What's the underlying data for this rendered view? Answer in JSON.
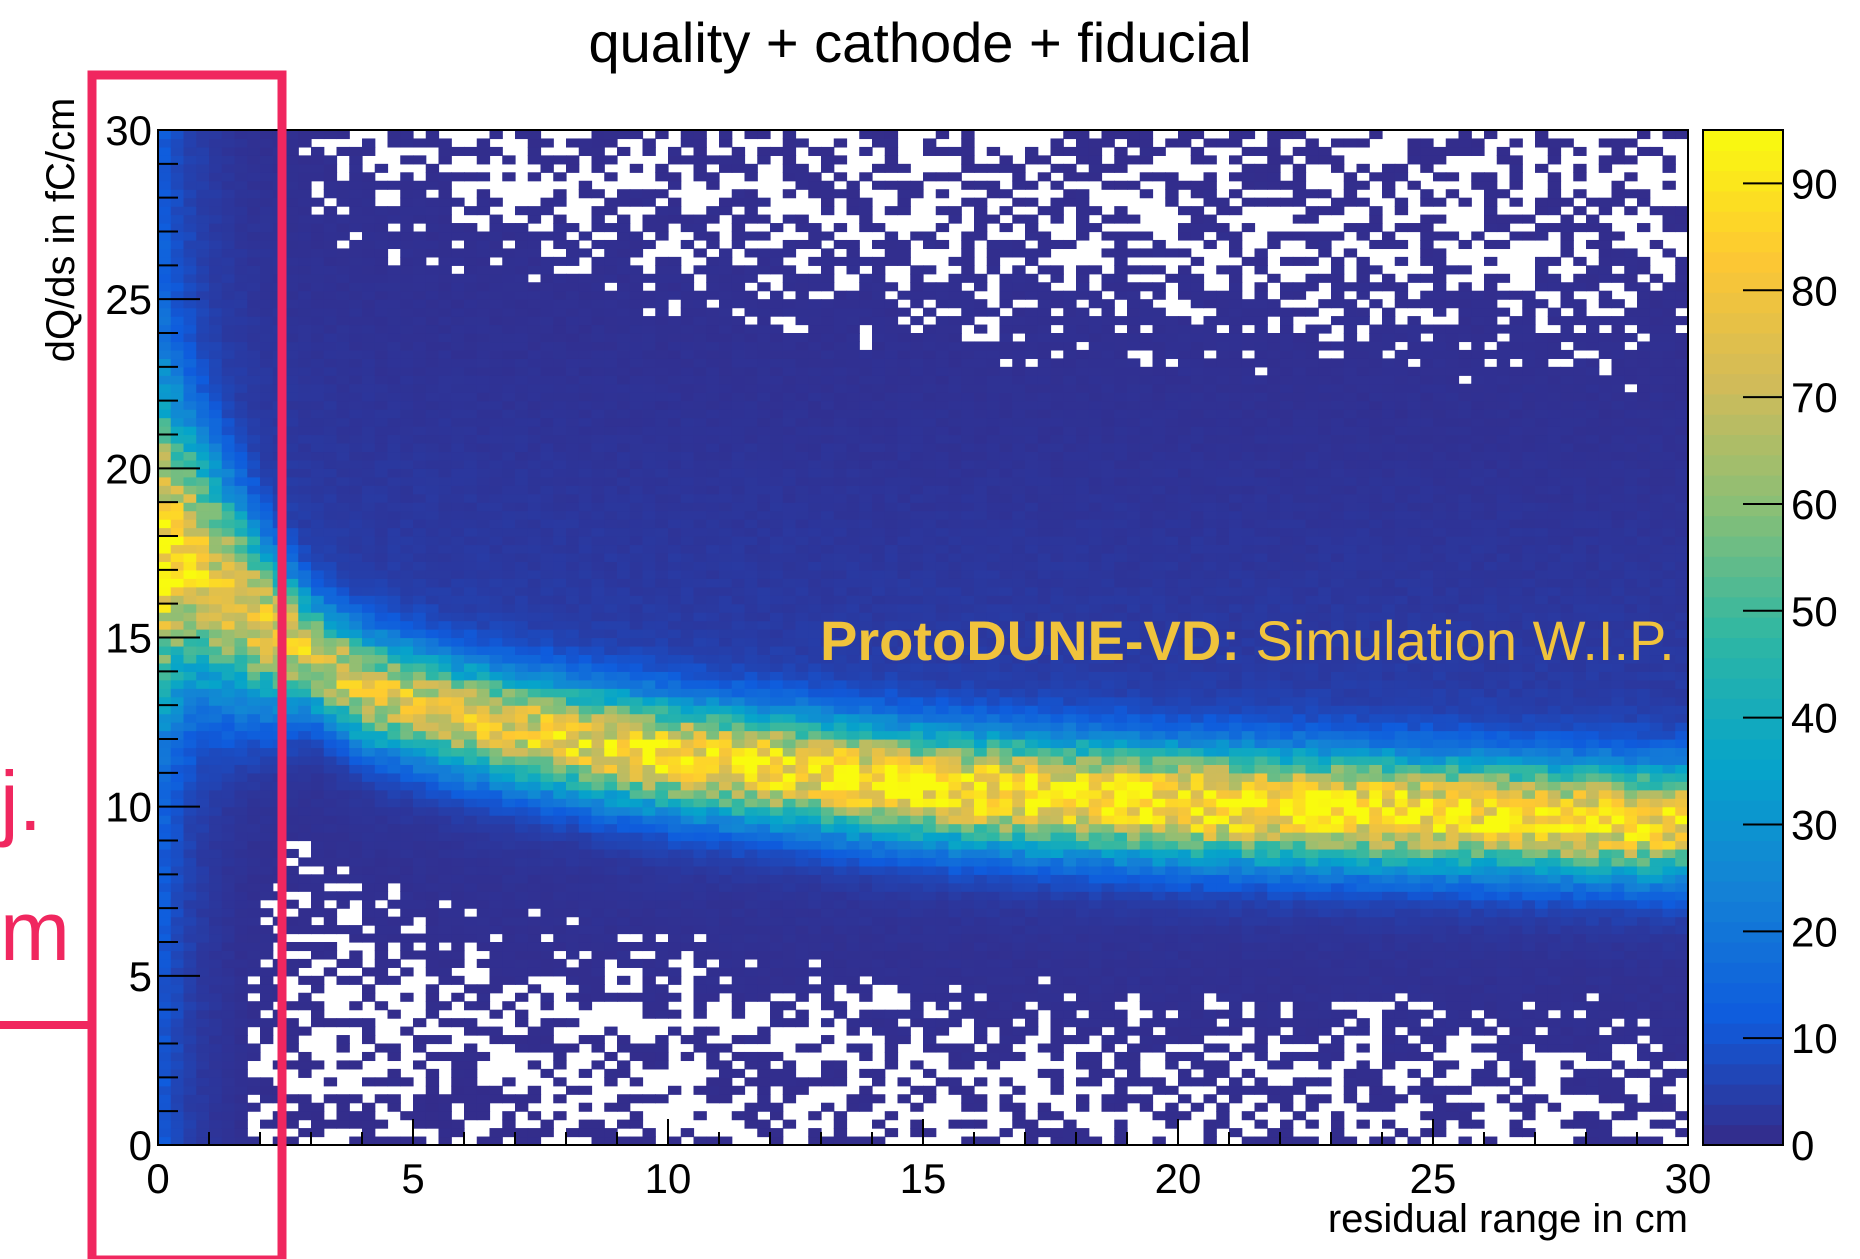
{
  "chart_data": {
    "type": "heatmap",
    "title": "quality + cathode + fiducial",
    "xlabel": "residual range in cm",
    "ylabel": "dQ/ds in fC/cm",
    "xlim": [
      0,
      30
    ],
    "ylim": [
      0,
      30
    ],
    "zlim": [
      0,
      95
    ],
    "x_ticks": [
      "0",
      "5",
      "10",
      "15",
      "20",
      "25",
      "30"
    ],
    "y_ticks": [
      "0",
      "5",
      "10",
      "15",
      "20",
      "25",
      "30"
    ],
    "z_ticks": [
      "0",
      "10",
      "20",
      "30",
      "40",
      "50",
      "60",
      "70",
      "80",
      "90"
    ],
    "bins": {
      "nx": 120,
      "ny": 120
    },
    "band_peak_y": [
      {
        "x": 0.5,
        "y": 17.5
      },
      {
        "x": 2,
        "y": 15.5
      },
      {
        "x": 4,
        "y": 13.5
      },
      {
        "x": 6,
        "y": 12.6
      },
      {
        "x": 8,
        "y": 12.0
      },
      {
        "x": 10,
        "y": 11.5
      },
      {
        "x": 15,
        "y": 10.6
      },
      {
        "x": 20,
        "y": 10.1
      },
      {
        "x": 25,
        "y": 9.8
      },
      {
        "x": 30,
        "y": 9.5
      }
    ],
    "band_peak_count": [
      {
        "x": 5,
        "y": 70
      },
      {
        "x": 10,
        "y": 80
      },
      {
        "x": 15,
        "y": 85
      },
      {
        "x": 20,
        "y": 88
      },
      {
        "x": 25,
        "y": 85
      },
      {
        "x": 30,
        "y": 80
      }
    ],
    "grid": false,
    "legend": "colorbar-right",
    "colors": {
      "background": "#2c2d97",
      "colormap": [
        "#352a87",
        "#0f5cdd",
        "#1481d6",
        "#06a4ca",
        "#2eb7a4",
        "#87bf77",
        "#d1bb59",
        "#fec832",
        "#f9fb0e"
      ]
    }
  },
  "watermark": {
    "bold": "ProtoDUNE-VD:",
    "normal": " Simulation W.I.P.",
    "color": "#f0c33c"
  },
  "annotation": {
    "color": "#f0275f",
    "text_line1": "j.",
    "text_line2": "m"
  }
}
